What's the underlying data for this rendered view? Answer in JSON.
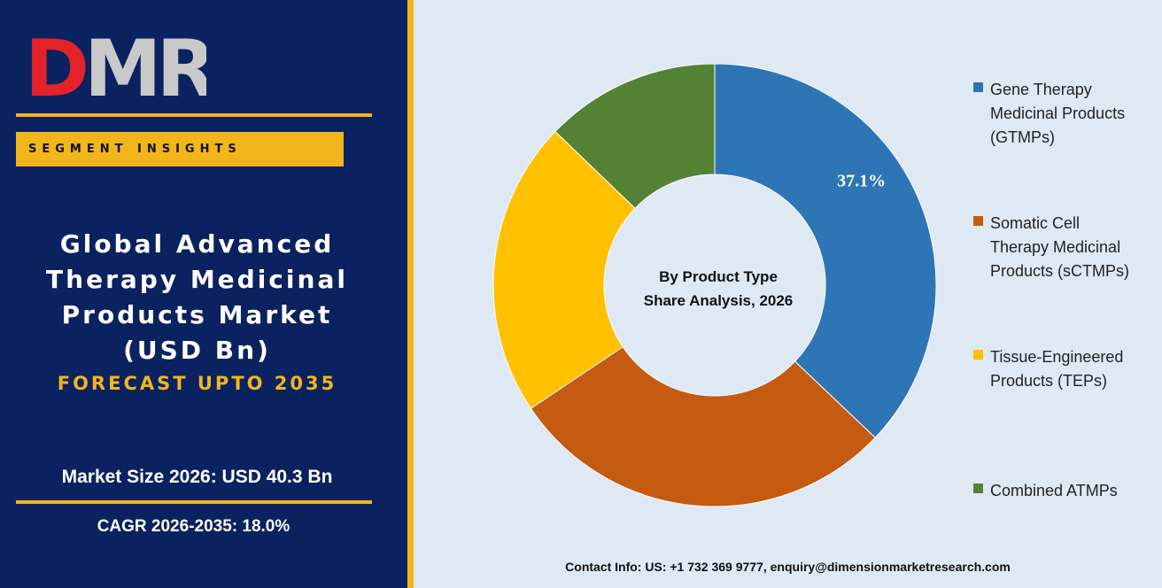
{
  "logo": {
    "text": "DMR",
    "colors": {
      "D": "#e3222a",
      "M": "#c9c9c9",
      "R": "#c9c9c9"
    }
  },
  "segment_banner": "SEGMENT INSIGHTS",
  "title_lines": [
    "Global Advanced",
    "Therapy Medicinal",
    "Products Market",
    "(USD Bn)"
  ],
  "forecast": "FORECAST UPTO 2035",
  "market_size": "Market Size 2026: USD 40.3 Bn",
  "cagr": "CAGR 2026-2035: 18.0%",
  "contact": "Contact Info: US: +1 732 369 9777, enquiry@dimensionmarketresearch.com",
  "colors": {
    "navy": "#0b2260",
    "gold": "#f2b51c",
    "background": "#dfe9f4"
  },
  "chart_data": {
    "type": "pie",
    "donut": true,
    "center_text": [
      "By Product Type",
      "Share Analysis, 2026"
    ],
    "categories": [
      "Gene Therapy Medicinal Products (GTMPs)",
      "Somatic Cell Therapy Medicinal Products (sCTMPs)",
      "Tissue-Engineered Products (TEPs)",
      "Combined ATMPs"
    ],
    "values": [
      37.1,
      28.5,
      21.6,
      12.8
    ],
    "colors": [
      "#2e75b6",
      "#c55a11",
      "#ffc000",
      "#548235"
    ],
    "data_labels": [
      "37.1%",
      "",
      "",
      ""
    ],
    "legend_position": "right",
    "legend": [
      [
        "Gene Therapy",
        "Medicinal Products",
        "(GTMPs)"
      ],
      [
        "Somatic Cell",
        "Therapy Medicinal",
        "Products (sCTMPs)"
      ],
      [
        "Tissue-Engineered",
        "Products (TEPs)"
      ],
      [
        "Combined ATMPs"
      ]
    ]
  }
}
